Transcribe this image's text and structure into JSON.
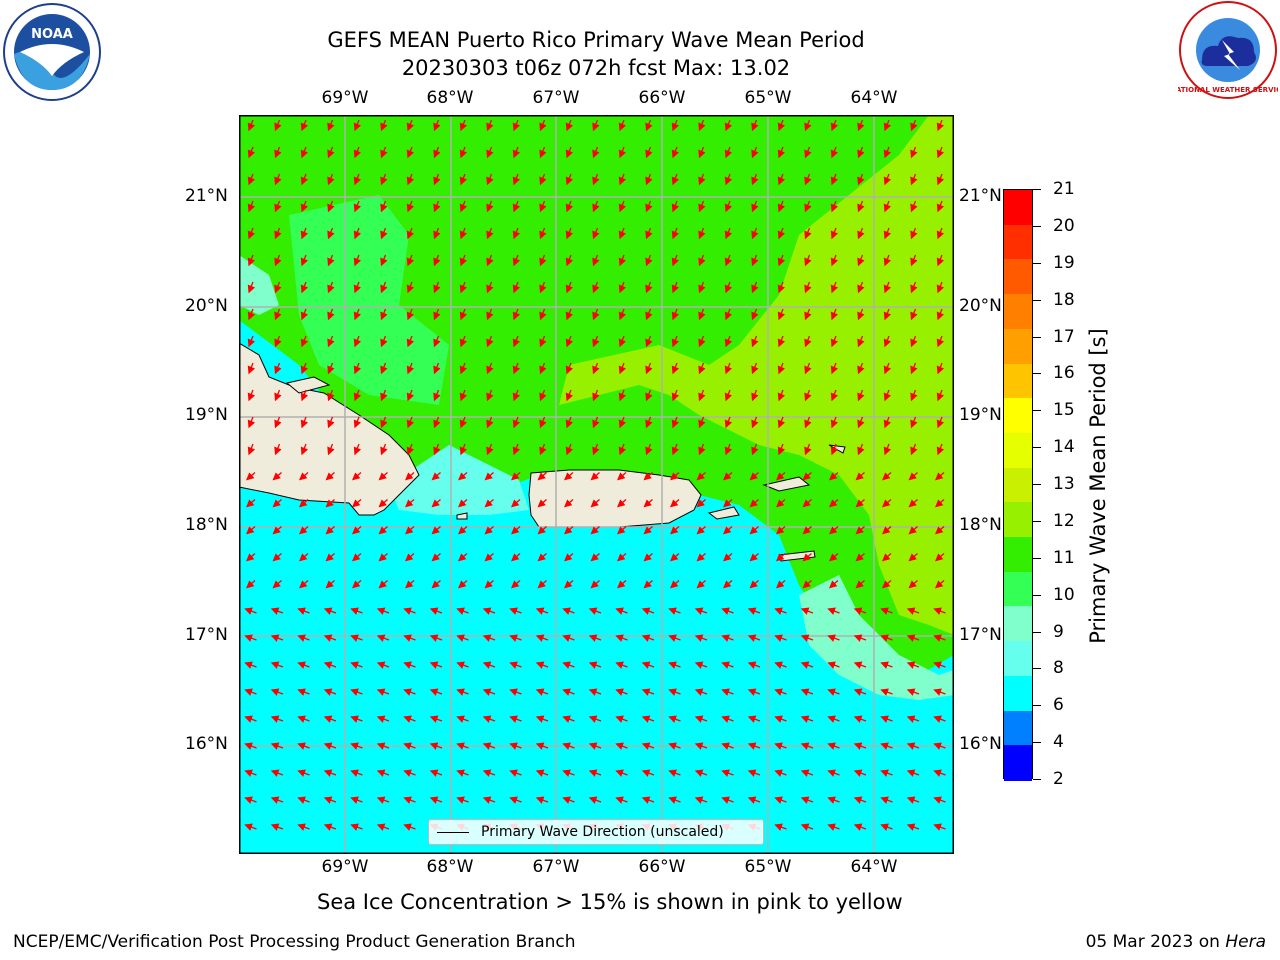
{
  "title": {
    "line1": "GEFS MEAN Puerto Rico Primary Wave Mean Period",
    "line2": "20230303 t06z 072h fcst   Max: 13.02"
  },
  "map": {
    "lon_labels": [
      "69°W",
      "68°W",
      "67°W",
      "66°W",
      "65°W",
      "64°W"
    ],
    "lat_labels": [
      "21°N",
      "20°N",
      "19°N",
      "18°N",
      "17°N",
      "16°N"
    ],
    "legend_label": "Primary Wave Direction (unscaled)",
    "arrow_color": "#ff0000",
    "land_color": "#efecdc"
  },
  "colorbar": {
    "title": "Primary Wave Mean Period [s]",
    "ticks": [
      "21",
      "20",
      "19",
      "18",
      "17",
      "16",
      "15",
      "14",
      "13",
      "12",
      "11",
      "10",
      "9",
      "8",
      "6",
      "4",
      "2"
    ],
    "colors_top_to_bottom": [
      "#ff0000",
      "#ff2f00",
      "#ff5a00",
      "#ff7f00",
      "#ff9f00",
      "#ffc400",
      "#ffff00",
      "#e6ff00",
      "#c8f000",
      "#96f000",
      "#33ee00",
      "#33ff55",
      "#80ffcc",
      "#66ffee",
      "#00ffff",
      "#0080ff",
      "#0000ff"
    ]
  },
  "notes": {
    "sea_ice": "Sea Ice Concentration > 15% is shown in pink to yellow"
  },
  "footer": {
    "left": "NCEP/EMC/Verification Post Processing Product Generation Branch",
    "right_date": "05 Mar 2023 on ",
    "right_host": "Hera"
  },
  "logos": {
    "noaa": "NOAA",
    "nws": "NATIONAL WEATHER SERVICE"
  }
}
